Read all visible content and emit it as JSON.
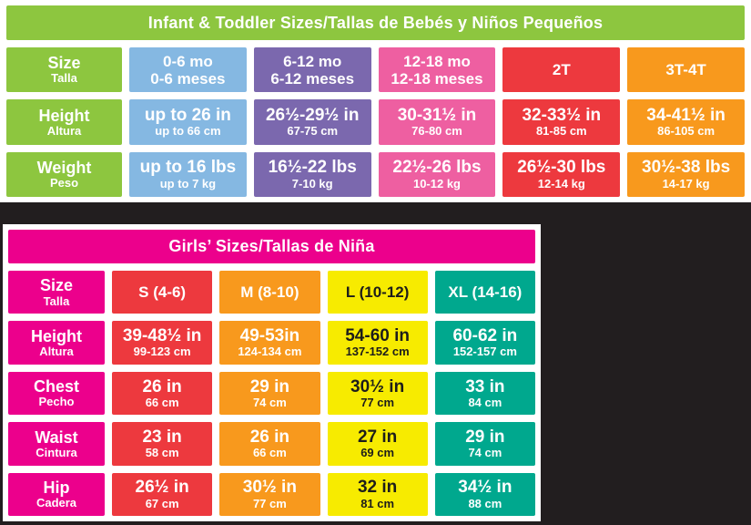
{
  "page": {
    "background_color": "#221e1f",
    "panel_color": "#ffffff"
  },
  "infant_table": {
    "title": "Infant & Toddler Sizes/Tallas de Bebés y Niños Pequeños",
    "header_color": "#8dc63f",
    "label_color": "#8dc63f",
    "column_colors": [
      "#85b8e2",
      "#7b68ae",
      "#ee5fa1",
      "#ed393e",
      "#f8991d"
    ],
    "rows": [
      {
        "label": "Size",
        "sublabel": "Talla",
        "cells": [
          {
            "main": "0-6 mo",
            "sub": "0-6 meses"
          },
          {
            "main": "6-12 mo",
            "sub": "6-12 meses"
          },
          {
            "main": "12-18 mo",
            "sub": "12-18 meses"
          },
          {
            "main": "2T",
            "sub": ""
          },
          {
            "main": "3T-4T",
            "sub": ""
          }
        ]
      },
      {
        "label": "Height",
        "sublabel": "Altura",
        "cells": [
          {
            "main": "up to 26 in",
            "sub": "up to 66 cm"
          },
          {
            "main": "26½-29½ in",
            "sub": "67-75 cm"
          },
          {
            "main": "30-31½ in",
            "sub": "76-80 cm"
          },
          {
            "main": "32-33½ in",
            "sub": "81-85 cm"
          },
          {
            "main": "34-41½ in",
            "sub": "86-105 cm"
          }
        ]
      },
      {
        "label": "Weight",
        "sublabel": "Peso",
        "cells": [
          {
            "main": "up to 16 lbs",
            "sub": "up to 7 kg"
          },
          {
            "main": "16½-22 lbs",
            "sub": "7-10 kg"
          },
          {
            "main": "22½-26 lbs",
            "sub": "10-12 kg"
          },
          {
            "main": "26½-30 lbs",
            "sub": "12-14 kg"
          },
          {
            "main": "30½-38 lbs",
            "sub": "14-17 kg"
          }
        ]
      }
    ]
  },
  "girls_table": {
    "title": "Girls’ Sizes/Tallas de Niña",
    "header_color": "#ec008c",
    "label_color": "#ec008c",
    "column_colors": [
      "#ed393e",
      "#f8991d",
      "#f7eb00",
      "#00a88e"
    ],
    "rows": [
      {
        "label": "Size",
        "sublabel": "Talla",
        "cells": [
          {
            "main": "S (4-6)",
            "sub": ""
          },
          {
            "main": "M (8-10)",
            "sub": ""
          },
          {
            "main": "L (10-12)",
            "sub": ""
          },
          {
            "main": "XL (14-16)",
            "sub": ""
          }
        ]
      },
      {
        "label": "Height",
        "sublabel": "Altura",
        "cells": [
          {
            "main": "39-48½ in",
            "sub": "99-123 cm"
          },
          {
            "main": "49-53in",
            "sub": "124-134 cm"
          },
          {
            "main": "54-60 in",
            "sub": "137-152 cm"
          },
          {
            "main": "60-62 in",
            "sub": "152-157 cm"
          }
        ]
      },
      {
        "label": "Chest",
        "sublabel": "Pecho",
        "cells": [
          {
            "main": "26 in",
            "sub": "66 cm"
          },
          {
            "main": "29 in",
            "sub": "74 cm"
          },
          {
            "main": "30½ in",
            "sub": "77 cm"
          },
          {
            "main": "33 in",
            "sub": "84 cm"
          }
        ]
      },
      {
        "label": "Waist",
        "sublabel": "Cintura",
        "cells": [
          {
            "main": "23 in",
            "sub": "58 cm"
          },
          {
            "main": "26 in",
            "sub": "66 cm"
          },
          {
            "main": "27 in",
            "sub": "69 cm"
          },
          {
            "main": "29 in",
            "sub": "74 cm"
          }
        ]
      },
      {
        "label": "Hip",
        "sublabel": "Cadera",
        "cells": [
          {
            "main": "26½ in",
            "sub": "67 cm"
          },
          {
            "main": "30½ in",
            "sub": "77 cm"
          },
          {
            "main": "32 in",
            "sub": "81 cm"
          },
          {
            "main": "34½ in",
            "sub": "88 cm"
          }
        ]
      }
    ]
  }
}
